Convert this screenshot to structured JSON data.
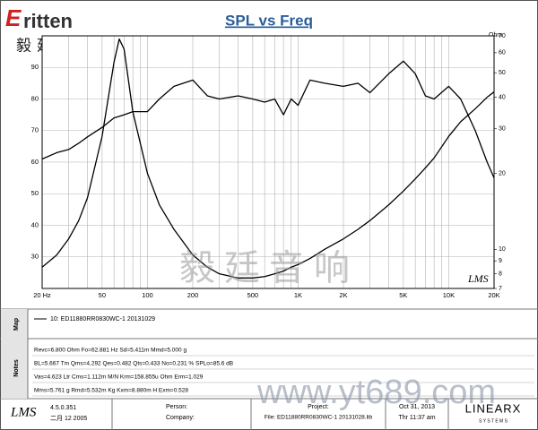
{
  "header": {
    "logo_mark": "E",
    "logo_text": "ritten",
    "logo_cn": "毅廷音响"
  },
  "chart_data": {
    "type": "line",
    "title": "SPL vs Freq",
    "y2_label": "Ohm",
    "plot_logo": "LMS",
    "x": [
      20,
      25,
      30,
      35,
      40,
      50,
      60,
      65,
      70,
      80,
      100,
      120,
      150,
      200,
      250,
      300,
      400,
      500,
      600,
      700,
      800,
      900,
      1000,
      1200,
      1500,
      2000,
      2500,
      3000,
      4000,
      5000,
      6000,
      7000,
      8000,
      10000,
      12000,
      15000,
      18000,
      20000
    ],
    "xscale": "log",
    "xlim": [
      20,
      20000
    ],
    "xticks": [
      {
        "value": 20,
        "label": "20 Hz"
      },
      50,
      100,
      200,
      500,
      {
        "value": 1000,
        "label": "1K"
      },
      {
        "value": 2000,
        "label": "2K"
      },
      {
        "value": 5000,
        "label": "5K"
      },
      {
        "value": 10000,
        "label": "10K"
      },
      {
        "value": 20000,
        "label": "20K"
      }
    ],
    "xminor": [
      30,
      40,
      60,
      70,
      80,
      90,
      300,
      400,
      600,
      700,
      800,
      900,
      3000,
      4000,
      6000,
      7000,
      8000,
      9000
    ],
    "ylim": [
      20,
      100
    ],
    "yticks": [
      30,
      40,
      50,
      60,
      70,
      80,
      90
    ],
    "y2scale": "log",
    "y2lim": [
      7,
      70
    ],
    "y2ticks": [
      7,
      8,
      9,
      10,
      20,
      30,
      40,
      50,
      60,
      70
    ],
    "grid": true,
    "series": [
      {
        "color": "#000000",
        "values": [
          61,
          63,
          64,
          66,
          68,
          71,
          74,
          74.5,
          75,
          76,
          76,
          80,
          84,
          86,
          81,
          80,
          81,
          80,
          79,
          80,
          75,
          80,
          78,
          86,
          85,
          84,
          85,
          82,
          88,
          92,
          88,
          81,
          80,
          84,
          80,
          70,
          60,
          55
        ]
      },
      {
        "color": "#000000",
        "axis": "y2",
        "values": [
          8.5,
          9.5,
          11,
          13,
          16,
          28,
          55,
          68,
          62,
          35,
          20,
          15,
          12,
          9.5,
          8.5,
          8,
          7.7,
          7.7,
          7.8,
          8,
          8.2,
          8.5,
          8.7,
          9.2,
          10,
          11,
          12,
          13,
          15,
          17,
          19,
          21,
          23,
          28,
          32,
          36,
          40,
          42
        ]
      }
    ]
  },
  "map": {
    "label": "Map",
    "entry": "10: ED11880RR0830WC-1   20131029"
  },
  "notes": {
    "label": "Notes",
    "lines": [
      "Revc=6.800 Ohm  Fo=62.881 Hz  Sd=5.411m  Mmd=5.000 g",
      "BL=5.667 Tm  Qms=4.292  Qes=0.482  Qts=0.433  No=0.231 %  SPLo=85.6 dB",
      "Vas=4.623 Ltr  Cms=1.112m M/N  Krm=158.855u Ohm  Erm=1.029",
      "Mms=5.761 g  Rmd=5.532m Kg  Kxm=8.880m H  Exm=0.528"
    ]
  },
  "footer": {
    "logo": "LMS",
    "version": "4.5.0.351",
    "build_date": "二月 12 2005",
    "person": "Person:",
    "company": "Company:",
    "project": "Project:",
    "file": "File: ED11880RR0830WC-1  20131028.lib",
    "date": "Oct 31, 2013",
    "time": "Thr 11:37 am",
    "brand": "LINEARX",
    "brand_sub": "S Y S T E M S"
  },
  "watermark": {
    "cn": "毅廷音响",
    "url": "www.yt689.com"
  }
}
